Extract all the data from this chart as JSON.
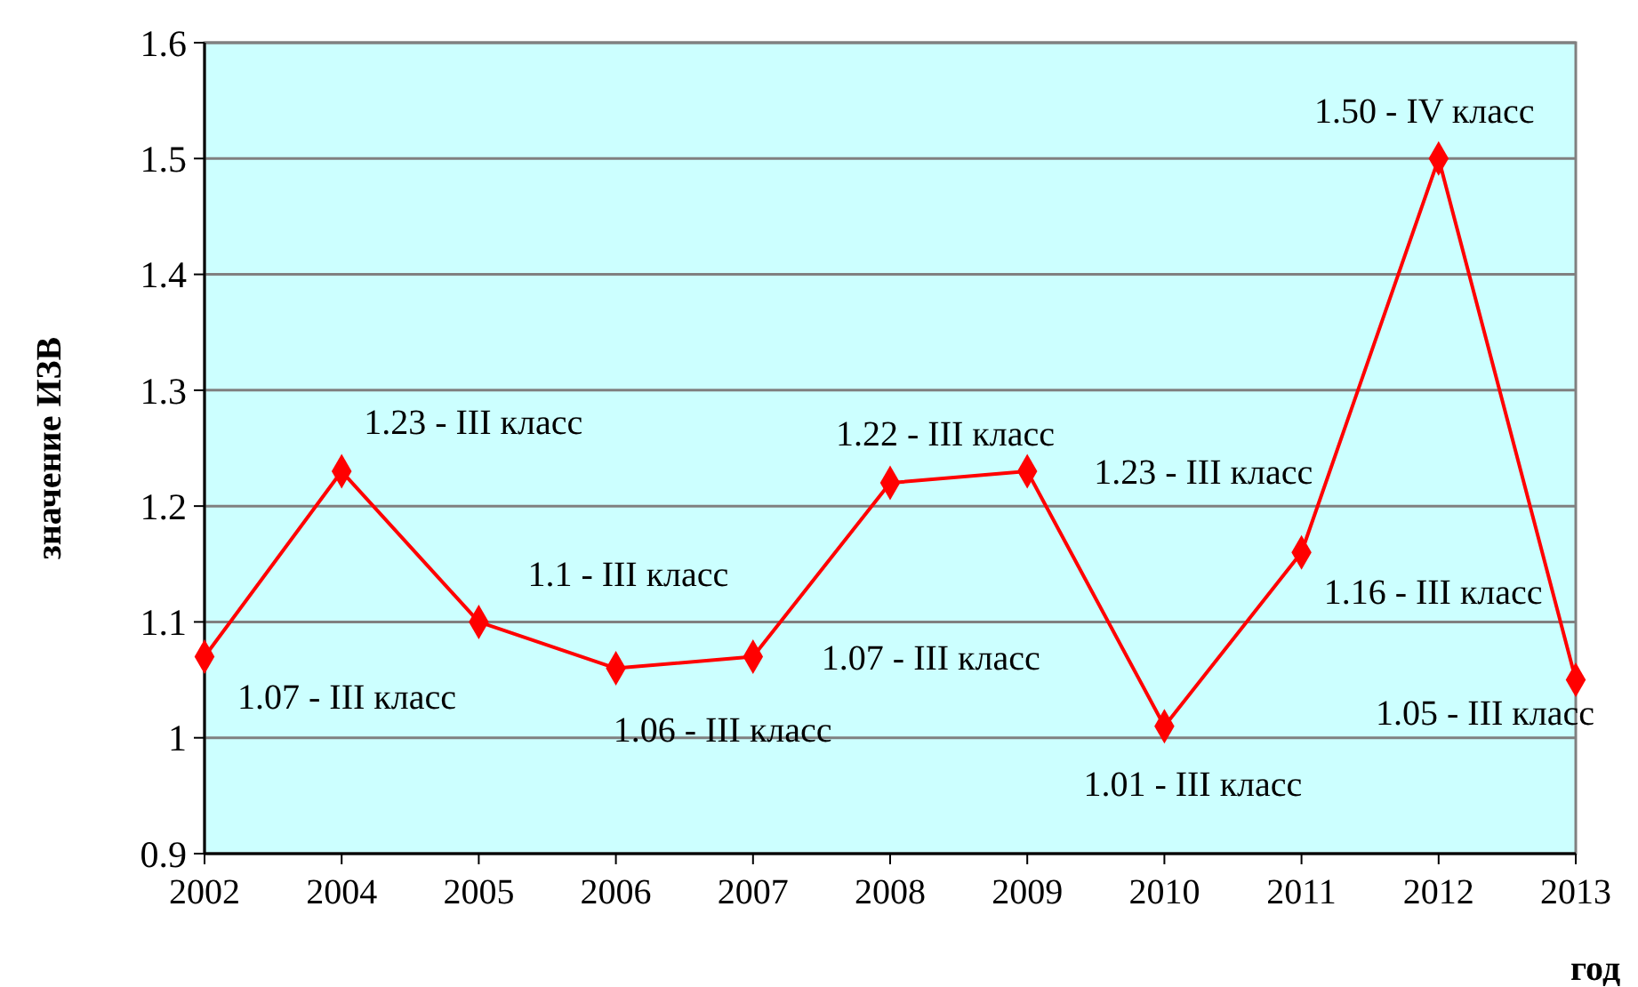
{
  "chart_data": {
    "type": "line",
    "xlabel": "год",
    "ylabel": "значение ИЗВ",
    "categories": [
      "2002",
      "2004",
      "2005",
      "2006",
      "2007",
      "2008",
      "2009",
      "2010",
      "2011",
      "2012",
      "2013"
    ],
    "values": [
      1.07,
      1.23,
      1.1,
      1.06,
      1.07,
      1.22,
      1.23,
      1.01,
      1.16,
      1.5,
      1.05
    ],
    "value_labels": [
      "1.07 - III класс",
      "1.23 - III класс",
      "1.1 - III класс",
      "1.06 - III класс",
      "1.07 - III класс",
      "1.22 - III класс",
      "1.23 - III класс",
      "1.01 - III класс",
      "1.16 - III класс",
      "1.50 - IV класс",
      "1.05 - III класс"
    ],
    "color": "#ff0000",
    "ylim": [
      0.9,
      1.6
    ],
    "yticks": [
      {
        "value": 0.9,
        "label": "0.9"
      },
      {
        "value": 1,
        "label": "1"
      },
      {
        "value": 1.1,
        "label": "1.1"
      },
      {
        "value": 1.2,
        "label": "1.2"
      },
      {
        "value": 1.3,
        "label": "1.3"
      },
      {
        "value": 1.4,
        "label": "1.4"
      },
      {
        "value": 1.5,
        "label": "1.5"
      },
      {
        "value": 1.6,
        "label": "1.6"
      }
    ],
    "grid": "y",
    "marker": "diamond",
    "line_style": "solid"
  }
}
